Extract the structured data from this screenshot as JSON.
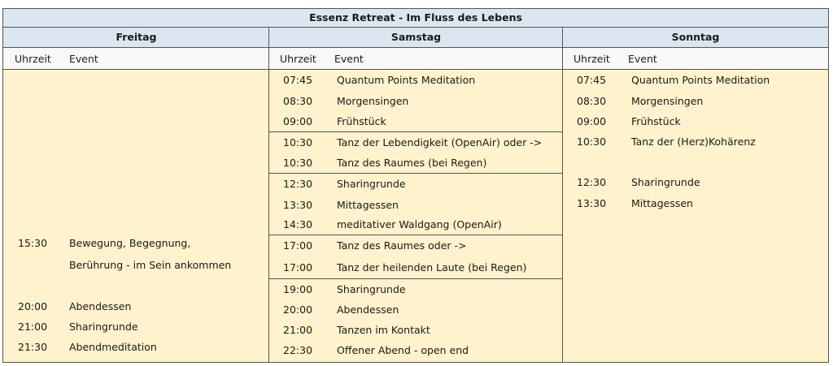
{
  "title": "Essenz Retreat - Im Fluss des Lebens",
  "headers": {
    "time": "Uhrzeit",
    "event": "Event"
  },
  "colors": {
    "header_bg": "#dce6f1",
    "body_bg": "#fff2cc",
    "border": "#555555"
  },
  "days": [
    {
      "name": "Freitag",
      "rows": [
        {
          "time": "",
          "event": ""
        },
        {
          "time": "",
          "event": ""
        },
        {
          "time": "",
          "event": ""
        },
        {
          "time": "",
          "event": ""
        },
        {
          "time": "",
          "event": ""
        },
        {
          "time": "",
          "event": ""
        },
        {
          "time": "",
          "event": ""
        },
        {
          "time": "",
          "event": ""
        },
        {
          "time": "15:30",
          "event": "Bewegung, Begegnung,"
        },
        {
          "time": "",
          "event": "Berührung - im Sein ankommen"
        },
        {
          "time": "",
          "event": ""
        },
        {
          "time": "20:00",
          "event": "Abendessen"
        },
        {
          "time": "21:00",
          "event": "Sharingrunde"
        },
        {
          "time": "21:30",
          "event": "Abendmeditation"
        }
      ]
    },
    {
      "name": "Samstag",
      "rows": [
        {
          "time": "07:45",
          "event": "Quantum Points Meditation"
        },
        {
          "time": "08:30",
          "event": "Morgensingen"
        },
        {
          "time": "09:00",
          "event": "Frühstück"
        },
        {
          "time": "10:30",
          "event": "Tanz der Lebendigkeit (OpenAir) oder ->"
        },
        {
          "time": "10:30",
          "event": "Tanz des Raumes (bei Regen)"
        },
        {
          "time": "12:30",
          "event": "Sharingrunde"
        },
        {
          "time": "13:30",
          "event": "Mittagessen"
        },
        {
          "time": "14:30",
          "event": "meditativer Waldgang (OpenAir)"
        },
        {
          "time": "17:00",
          "event": "Tanz des Raumes oder ->"
        },
        {
          "time": "17:00",
          "event": "Tanz der heilenden Laute (bei Regen)"
        },
        {
          "time": "19:00",
          "event": "Sharingrunde"
        },
        {
          "time": "20:00",
          "event": "Abendessen"
        },
        {
          "time": "21:00",
          "event": "Tanzen im Kontakt"
        },
        {
          "time": "22:30",
          "event": "Offener Abend - open end"
        }
      ]
    },
    {
      "name": "Sonntag",
      "rows": [
        {
          "time": "07:45",
          "event": "Quantum Points Meditation"
        },
        {
          "time": "08:30",
          "event": "Morgensingen"
        },
        {
          "time": "09:00",
          "event": "Frühstück"
        },
        {
          "time": "10:30",
          "event": "Tanz der (Herz)Kohärenz"
        },
        {
          "time": "",
          "event": ""
        },
        {
          "time": "12:30",
          "event": "Sharingrunde"
        },
        {
          "time": "13:30",
          "event": "Mittagessen"
        }
      ]
    }
  ]
}
